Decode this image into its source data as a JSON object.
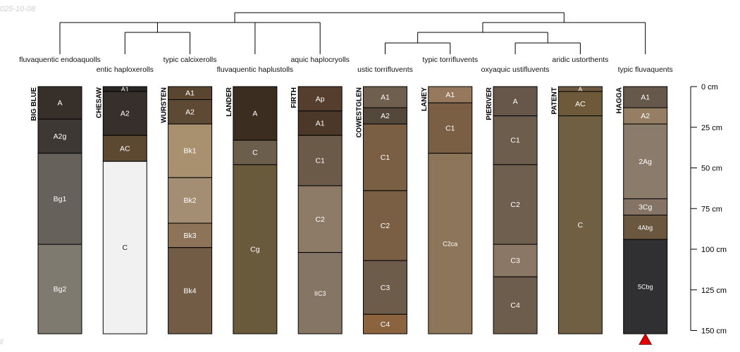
{
  "watermark": {
    "date": "025-10-08",
    "corner": "ll"
  },
  "chart_data": {
    "type": "soil-profile-sketch with dendrogram",
    "depth_axis": {
      "unit": "cm",
      "min": 0,
      "max": 150,
      "ticks": [
        0,
        25,
        50,
        75,
        100,
        125,
        150
      ],
      "tick_labels": [
        "0 cm",
        "25 cm",
        "50 cm",
        "75 cm",
        "100 cm",
        "125 cm",
        "150 cm"
      ]
    },
    "dendrogram": {
      "leaf_order": [
        "BIG BLUE",
        "CHESAW",
        "WURSTEN",
        "LANDER",
        "FIRTH",
        "COWESTGLEN",
        "LANEY",
        "PIERIVER",
        "PATENT",
        "HAGGA"
      ],
      "merges": [
        [
          1,
          2
        ],
        [
          0,
          10
        ],
        [
          4,
          11
        ],
        [
          3,
          12
        ],
        [
          5,
          6
        ],
        [
          7,
          8
        ],
        [
          14,
          15
        ],
        [
          16,
          9
        ],
        [
          13,
          17
        ]
      ]
    },
    "highlight_marker": {
      "profile": "HAGGA",
      "shape": "triangle",
      "color": "#e00000"
    },
    "profiles": [
      {
        "name": "BIG BLUE",
        "taxon": "fluvaquentic endoaquolls",
        "horizons": [
          {
            "name": "A",
            "top": 0,
            "bottom": 20,
            "color": "#372f2a"
          },
          {
            "name": "A2g",
            "top": 20,
            "bottom": 41,
            "color": "#3e3834"
          },
          {
            "name": "Bg1",
            "top": 41,
            "bottom": 97,
            "color": "#66615a"
          },
          {
            "name": "Bg2",
            "top": 97,
            "bottom": 152,
            "color": "#7f7a6f"
          }
        ]
      },
      {
        "name": "CHESAW",
        "taxon": "entic haploxerolls",
        "horizons": [
          {
            "name": "A1",
            "top": 0,
            "bottom": 3,
            "color": "#2a2624"
          },
          {
            "name": "A2",
            "top": 3,
            "bottom": 30,
            "color": "#372f2b"
          },
          {
            "name": "AC",
            "top": 30,
            "bottom": 46,
            "color": "#5d4932"
          },
          {
            "name": "C",
            "top": 46,
            "bottom": 152,
            "color": "#f1f1f1"
          }
        ]
      },
      {
        "name": "WURSTEN",
        "taxon": "typic calcixerolls",
        "horizons": [
          {
            "name": "A1",
            "top": 0,
            "bottom": 8,
            "color": "#5a4630"
          },
          {
            "name": "A2",
            "top": 8,
            "bottom": 23,
            "color": "#5e4934"
          },
          {
            "name": "Bk1",
            "top": 23,
            "bottom": 56,
            "color": "#a9916f"
          },
          {
            "name": "Bk2",
            "top": 56,
            "bottom": 84,
            "color": "#a38e73"
          },
          {
            "name": "Bk3",
            "top": 84,
            "bottom": 99,
            "color": "#8d7459"
          },
          {
            "name": "Bk4",
            "top": 99,
            "bottom": 152,
            "color": "#725c45"
          }
        ]
      },
      {
        "name": "LANDER",
        "taxon": "fluvaquentic haplustolls",
        "horizons": [
          {
            "name": "A",
            "top": 0,
            "bottom": 33,
            "color": "#3c2d21"
          },
          {
            "name": "C",
            "top": 33,
            "bottom": 48,
            "color": "#6b5e4a"
          },
          {
            "name": "Cg",
            "top": 48,
            "bottom": 152,
            "color": "#6a5a3c"
          }
        ]
      },
      {
        "name": "FIRTH",
        "taxon": "aquic haplocryolls",
        "horizons": [
          {
            "name": "Ap",
            "top": 0,
            "bottom": 15,
            "color": "#553e2e"
          },
          {
            "name": "A1",
            "top": 15,
            "bottom": 30,
            "color": "#4c3829"
          },
          {
            "name": "C1",
            "top": 30,
            "bottom": 61,
            "color": "#6c5a48"
          },
          {
            "name": "C2",
            "top": 61,
            "bottom": 102,
            "color": "#8d7a67"
          },
          {
            "name": "IIC3",
            "top": 102,
            "bottom": 152,
            "color": "#857565"
          }
        ]
      },
      {
        "name": "COWESTGLEN",
        "taxon": "ustic torrifluvents",
        "horizons": [
          {
            "name": "A1",
            "top": 0,
            "bottom": 13,
            "color": "#6f5f4e"
          },
          {
            "name": "A2",
            "top": 13,
            "bottom": 23,
            "color": "#54483c"
          },
          {
            "name": "C1",
            "top": 23,
            "bottom": 64,
            "color": "#7a5f44"
          },
          {
            "name": "C2",
            "top": 64,
            "bottom": 107,
            "color": "#7a5f44"
          },
          {
            "name": "C3",
            "top": 107,
            "bottom": 140,
            "color": "#6e5c4b"
          },
          {
            "name": "C4",
            "top": 140,
            "bottom": 152,
            "color": "#8b633e"
          }
        ]
      },
      {
        "name": "LANEY",
        "taxon": "typic torrifluvents",
        "horizons": [
          {
            "name": "A1",
            "top": 0,
            "bottom": 10,
            "color": "#96785d"
          },
          {
            "name": "C1",
            "top": 10,
            "bottom": 41,
            "color": "#7a5f45"
          },
          {
            "name": "C2ca",
            "top": 41,
            "bottom": 152,
            "color": "#8c7558"
          }
        ]
      },
      {
        "name": "PIERIVER",
        "taxon": "oxyaquic ustifluvents",
        "horizons": [
          {
            "name": "A",
            "top": 0,
            "bottom": 18,
            "color": "#66574a"
          },
          {
            "name": "C1",
            "top": 18,
            "bottom": 48,
            "color": "#6d5d4c"
          },
          {
            "name": "C2",
            "top": 48,
            "bottom": 97,
            "color": "#6f5f4f"
          },
          {
            "name": "C3",
            "top": 97,
            "bottom": 117,
            "color": "#8a7765"
          },
          {
            "name": "C4",
            "top": 117,
            "bottom": 152,
            "color": "#6d5d4c"
          }
        ]
      },
      {
        "name": "PATENT",
        "taxon": "aridic ustorthents",
        "horizons": [
          {
            "name": "A",
            "top": 0,
            "bottom": 3,
            "color": "#6e5a40"
          },
          {
            "name": "AC",
            "top": 3,
            "bottom": 18,
            "color": "#6e5a3a"
          },
          {
            "name": "C",
            "top": 18,
            "bottom": 152,
            "color": "#715f43"
          }
        ]
      },
      {
        "name": "HAGGA",
        "taxon": "typic fluvaquents",
        "horizons": [
          {
            "name": "A1",
            "top": 0,
            "bottom": 13,
            "color": "#66584b"
          },
          {
            "name": "A2",
            "top": 13,
            "bottom": 23,
            "color": "#957e63"
          },
          {
            "name": "2Ag",
            "top": 23,
            "bottom": 69,
            "color": "#8b7b6a"
          },
          {
            "name": "3Cg",
            "top": 69,
            "bottom": 79,
            "color": "#857465"
          },
          {
            "name": "4Abg",
            "top": 79,
            "bottom": 94,
            "color": "#6b5640"
          },
          {
            "name": "5Cbg",
            "top": 94,
            "bottom": 152,
            "color": "#303033"
          }
        ]
      }
    ]
  }
}
